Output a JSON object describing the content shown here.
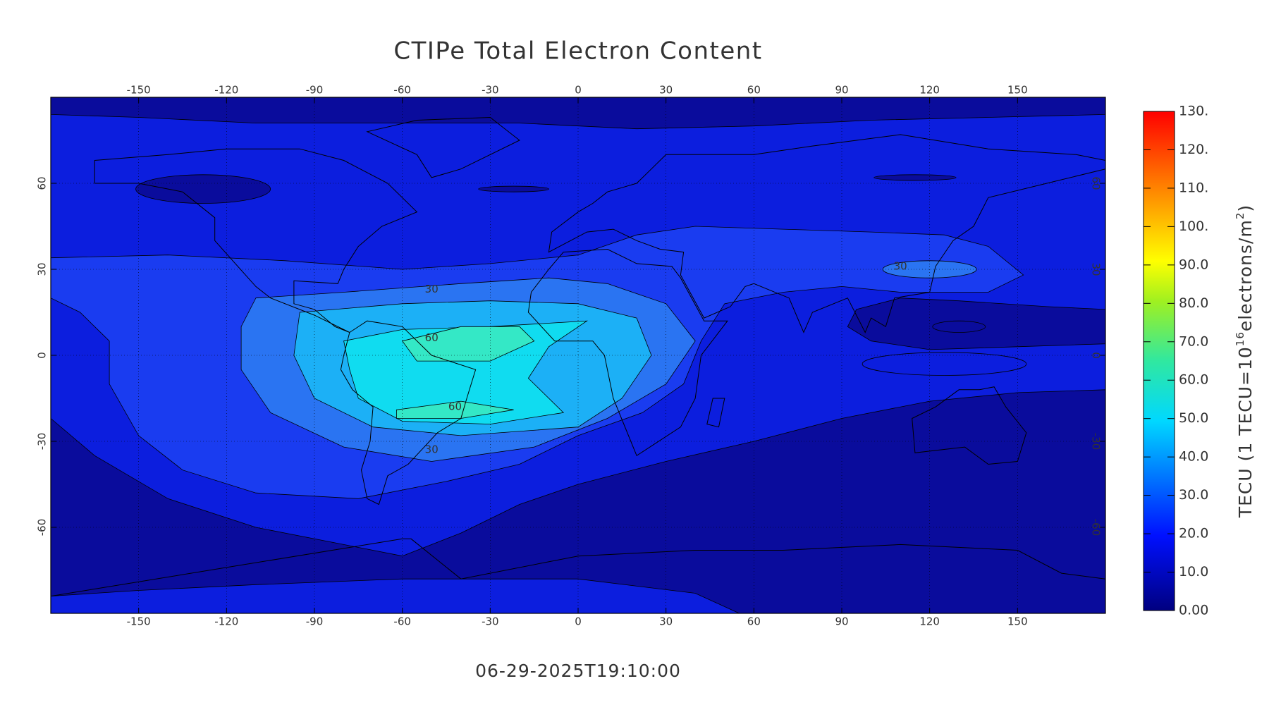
{
  "title": "CTIPe Total Electron Content",
  "timestamp": "06-29-2025T19:10:00",
  "map": {
    "type": "contour-map",
    "xlim": [
      -180,
      180
    ],
    "ylim": [
      -90,
      90
    ],
    "xticks": [
      -150,
      -120,
      -90,
      -60,
      -30,
      0,
      30,
      60,
      90,
      120,
      150
    ],
    "yticks": [
      -60,
      -30,
      0,
      30,
      60
    ],
    "contour_labels": [
      30,
      60,
      30,
      60,
      30
    ]
  },
  "colorbar": {
    "label_parts": [
      "TECU  (1 TECU=10",
      "16",
      "electrons/m",
      "2",
      ")"
    ],
    "lim": [
      0,
      130
    ],
    "ticks": [
      {
        "value": 0,
        "label": "0.00"
      },
      {
        "value": 10,
        "label": "10.0"
      },
      {
        "value": 20,
        "label": "20.0"
      },
      {
        "value": 30,
        "label": "30.0"
      },
      {
        "value": 40,
        "label": "40.0"
      },
      {
        "value": 50,
        "label": "50.0"
      },
      {
        "value": 60,
        "label": "60.0"
      },
      {
        "value": 70,
        "label": "70.0"
      },
      {
        "value": 80,
        "label": "80.0"
      },
      {
        "value": 90,
        "label": "90.0"
      },
      {
        "value": 100,
        "label": "100."
      },
      {
        "value": 110,
        "label": "110."
      },
      {
        "value": 120,
        "label": "120."
      },
      {
        "value": 130,
        "label": "130."
      }
    ]
  }
}
